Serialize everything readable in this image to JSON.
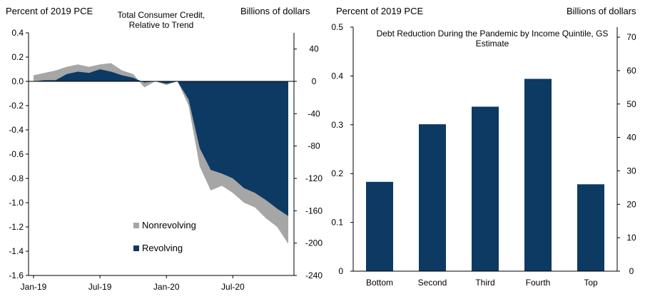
{
  "chart_data": [
    {
      "type": "area",
      "title": "Total Consumer Credit, Relative to Trend",
      "ylabel_left": "Percent of 2019 PCE",
      "ylabel_right": "Billions of dollars",
      "ylim_left": [
        -1.6,
        0.4
      ],
      "ylim_right": [
        -240,
        60
      ],
      "yticks_left": [
        "0.4",
        "0.2",
        "0.0",
        "-0.2",
        "-0.4",
        "-0.6",
        "-0.8",
        "-1.0",
        "-1.2",
        "-1.4",
        "-1.6"
      ],
      "yticks_right": [
        "40",
        "0",
        "-40",
        "-80",
        "-120",
        "-160",
        "-200",
        "-240"
      ],
      "xticks": [
        "Jan-19",
        "Jul-19",
        "Jan-20",
        "Jul-20"
      ],
      "xtick_index": [
        0,
        6,
        12,
        18
      ],
      "x_count": 24,
      "stacking": "Revolving is drawn from zero; Nonrevolving is stacked beyond Revolving",
      "series": [
        {
          "name": "Revolving",
          "color": "#0c3a63",
          "values": [
            0.0,
            0.01,
            0.01,
            0.06,
            0.08,
            0.07,
            0.1,
            0.08,
            0.05,
            0.03,
            -0.01,
            0.0,
            -0.02,
            0.0,
            -0.15,
            -0.55,
            -0.73,
            -0.76,
            -0.8,
            -0.88,
            -0.92,
            -0.98,
            -1.05,
            -1.11
          ]
        },
        {
          "name": "Nonrevolving",
          "color": "#a6a6a6",
          "values": [
            0.05,
            0.06,
            0.08,
            0.06,
            0.06,
            0.05,
            0.04,
            0.07,
            0.04,
            0.03,
            -0.04,
            0.0,
            -0.01,
            0.0,
            -0.05,
            -0.15,
            -0.17,
            -0.1,
            -0.12,
            -0.12,
            -0.12,
            -0.15,
            -0.15,
            -0.23
          ]
        }
      ],
      "legend": [
        "Nonrevolving",
        "Revolving"
      ]
    },
    {
      "type": "bar",
      "title": "Debt Reduction During the Pandemic by Income Quintile, GS Estimate",
      "ylabel_left": "Percent of 2019 PCE",
      "ylabel_right": "Billions of dollars",
      "ylim_left": [
        0,
        0.5
      ],
      "ylim_right": [
        0,
        73
      ],
      "yticks_left": [
        "0.5",
        "0.4",
        "0.3",
        "0.2",
        "0.1",
        "0"
      ],
      "yticks_right": [
        "70",
        "60",
        "50",
        "40",
        "30",
        "20",
        "10",
        "0"
      ],
      "categories": [
        "Bottom",
        "Second",
        "Third",
        "Fourth",
        "Top"
      ],
      "values": [
        0.183,
        0.301,
        0.337,
        0.394,
        0.178
      ],
      "color": "#0c3a63"
    }
  ]
}
